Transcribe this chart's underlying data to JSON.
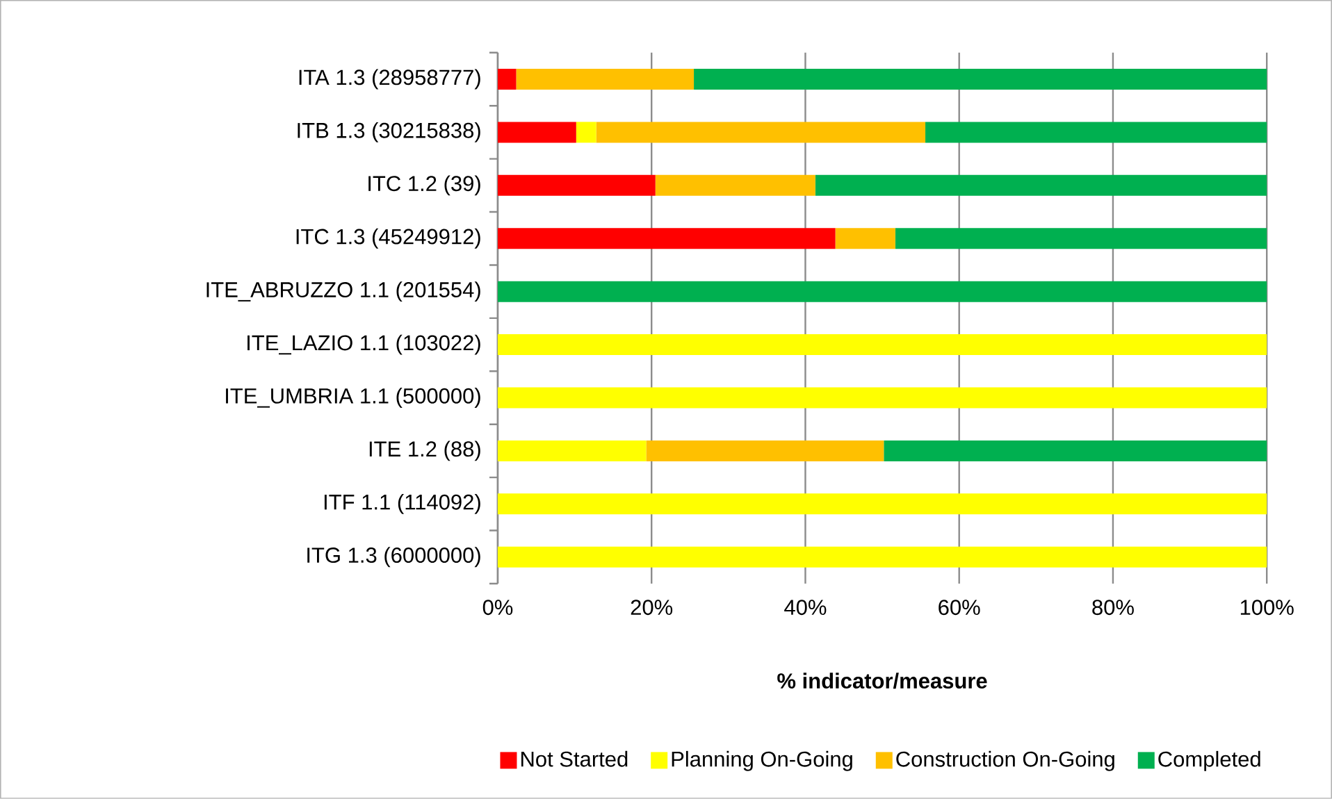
{
  "chart_data": {
    "type": "bar",
    "orientation": "horizontal",
    "stacked": true,
    "xlabel": "% indicator/measure",
    "categories": [
      "ITA 1.3 (28958777)",
      "ITB 1.3 (30215838)",
      "ITC 1.2 (39)",
      "ITC 1.3 (45249912)",
      "ITE_ABRUZZO 1.1 (201554)",
      "ITE_LAZIO 1.1 (103022)",
      "ITE_UMBRIA 1.1 (500000)",
      "ITE 1.2 (88)",
      "ITF 1.1 (114092)",
      "ITG 1.3 (6000000)"
    ],
    "series": [
      {
        "name": "Not Started",
        "color": "#ff0000",
        "values": [
          2.4,
          10.2,
          20.5,
          43.9,
          0,
          0,
          0,
          0,
          0,
          0
        ]
      },
      {
        "name": "Planning On-Going",
        "color": "#ffff00",
        "values": [
          0,
          2.6,
          0,
          0,
          0,
          100,
          100,
          19.3,
          100,
          100
        ]
      },
      {
        "name": "Construction On-Going",
        "color": "#ffc000",
        "values": [
          23.1,
          42.8,
          20.8,
          7.8,
          0,
          0,
          0,
          30.9,
          0,
          0
        ]
      },
      {
        "name": "Completed",
        "color": "#00b050",
        "values": [
          74.5,
          44.4,
          58.7,
          48.3,
          100,
          0,
          0,
          49.8,
          0,
          0
        ]
      }
    ],
    "xlim": [
      0,
      100
    ],
    "xticks": [
      {
        "value": 0,
        "label": "0%"
      },
      {
        "value": 20,
        "label": "20%"
      },
      {
        "value": 40,
        "label": "40%"
      },
      {
        "value": 60,
        "label": "60%"
      },
      {
        "value": 80,
        "label": "80%"
      },
      {
        "value": 100,
        "label": "100%"
      }
    ],
    "grid": "x",
    "legend": "bottom"
  }
}
